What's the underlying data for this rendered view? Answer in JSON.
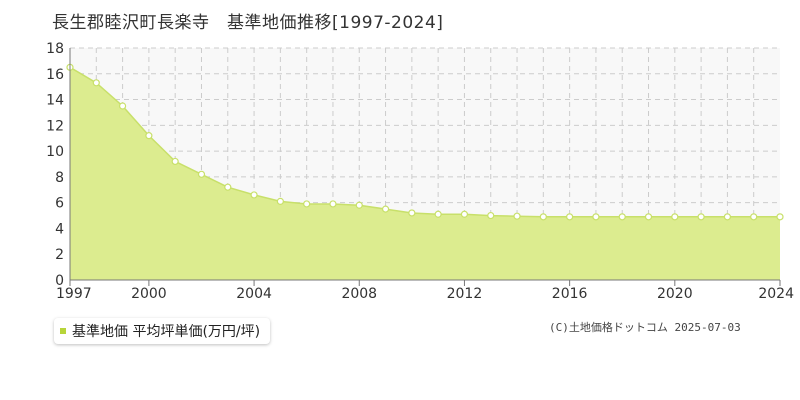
{
  "chart_data": {
    "type": "area",
    "title": "長生郡睦沢町長楽寺　基準地価推移[1997-2024]",
    "x": [
      1997,
      1998,
      1999,
      2000,
      2001,
      2002,
      2003,
      2004,
      2005,
      2006,
      2007,
      2008,
      2009,
      2010,
      2011,
      2012,
      2013,
      2014,
      2015,
      2016,
      2017,
      2018,
      2019,
      2020,
      2021,
      2022,
      2023,
      2024
    ],
    "series": [
      {
        "name": "基準地価 平均坪単価(万円/坪)",
        "values": [
          16.5,
          15.3,
          13.5,
          11.2,
          9.2,
          8.2,
          7.2,
          6.6,
          6.1,
          5.9,
          5.9,
          5.8,
          5.5,
          5.2,
          5.1,
          5.1,
          5.0,
          4.95,
          4.9,
          4.9,
          4.9,
          4.9,
          4.9,
          4.9,
          4.9,
          4.9,
          4.9,
          4.9
        ]
      }
    ],
    "xticks": [
      1997,
      2000,
      2004,
      2008,
      2012,
      2016,
      2020,
      2024
    ],
    "yticks": [
      0,
      2,
      4,
      6,
      8,
      10,
      12,
      14,
      16,
      18
    ],
    "xlim": [
      1997,
      2024
    ],
    "ylim": [
      0,
      18
    ],
    "grid": true,
    "legend_position": "bottom-left",
    "colors": {
      "fill": "#dcec8f",
      "line": "#c8e06a",
      "marker_fill": "#ffffff",
      "grid": "#cccccc",
      "plot_bg": "#f8f8f8"
    }
  },
  "legend": {
    "label": "基準地価 平均坪単価(万円/坪)"
  },
  "copyright": "(C)土地価格ドットコム 2025-07-03"
}
